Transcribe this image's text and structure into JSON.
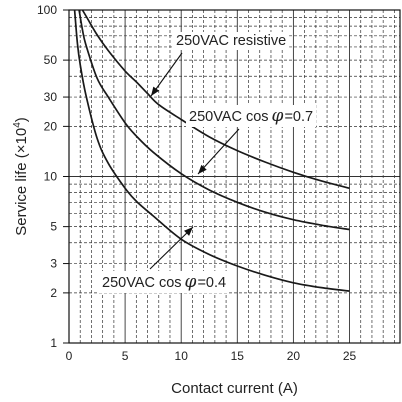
{
  "chart_data": {
    "type": "line",
    "title": "",
    "xlabel": "Contact current (A)",
    "ylabel": {
      "prefix": "Service life (×10",
      "exponent": "4",
      "suffix": ")"
    },
    "xlim": [
      0,
      29.5
    ],
    "ylim": [
      1,
      100
    ],
    "yscale": "log",
    "grid": true,
    "x_ticks": [
      "0",
      "5",
      "10",
      "15",
      "20",
      "25"
    ],
    "y_ticks": [
      "1",
      "2",
      "3",
      "5",
      "10",
      "20",
      "30",
      "50",
      "100"
    ],
    "series": [
      {
        "name": "250VAC resistive",
        "x": [
          1.2,
          1.6,
          2.5,
          3.5,
          5,
          6,
          7,
          8,
          10,
          12.5,
          15,
          17.5,
          20,
          22.5,
          25
        ],
        "y": [
          100,
          90,
          71,
          57,
          43,
          37,
          31.5,
          27,
          22,
          17.3,
          14.3,
          12.2,
          10.6,
          9.4,
          8.5
        ]
      },
      {
        "name": "250VAC cosφ=0.7",
        "x": [
          0.9,
          1.2,
          1.5,
          2.5,
          3.5,
          5,
          6,
          7.5,
          10,
          12.5,
          15,
          17.5,
          20,
          22.5,
          25
        ],
        "y": [
          100,
          76,
          62,
          39,
          30,
          21,
          17.5,
          14,
          10.4,
          8.3,
          7,
          6.1,
          5.5,
          5.1,
          4.8
        ]
      },
      {
        "name": "250VAC cosφ=0.4",
        "x": [
          0.5,
          0.75,
          1,
          1.5,
          2.5,
          3.5,
          5,
          6,
          7.5,
          10,
          12.5,
          15,
          17.5,
          20,
          22.5,
          25
        ],
        "y": [
          100,
          63,
          47,
          31,
          17,
          12,
          8.5,
          7.1,
          5.8,
          4.2,
          3.4,
          2.9,
          2.55,
          2.3,
          2.15,
          2.05
        ]
      }
    ],
    "annotations": [
      {
        "series": 0,
        "parts": [
          "250VAC resistive"
        ]
      },
      {
        "series": 1,
        "parts": [
          "250VAC cos",
          "φ",
          "=0.7"
        ]
      },
      {
        "series": 2,
        "parts": [
          "250VAC cos",
          "φ",
          "=0.4"
        ]
      }
    ]
  }
}
